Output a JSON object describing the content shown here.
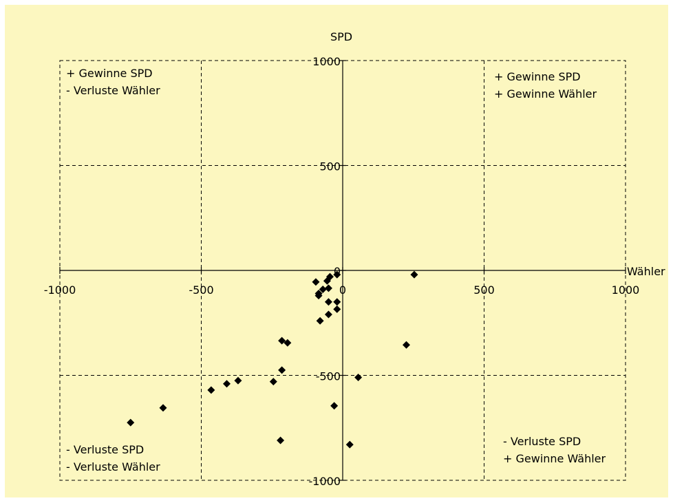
{
  "chart_data": {
    "type": "scatter",
    "title": "",
    "xlabel": "Wähler",
    "ylabel": "SPD",
    "xlim": [
      -1000,
      1000
    ],
    "ylim": [
      -1000,
      1000
    ],
    "xticks": [
      "-1000",
      "-500",
      "0",
      "500",
      "1000"
    ],
    "yticks": [
      "-1000",
      "-500",
      "0",
      "500",
      "1000"
    ],
    "grid": true,
    "legend": "none",
    "marker": "diamond",
    "colors": {
      "background": "#fcf7c0",
      "marker": "#000000",
      "grid": "#000000"
    },
    "quadrant_labels": {
      "top_left": [
        "+ Gewinne SPD",
        "- Verluste Wähler"
      ],
      "top_right": [
        "+ Gewinne SPD",
        "+ Gewinne Wähler"
      ],
      "bottom_left": [
        "- Verluste SPD",
        "- Verluste Wähler"
      ],
      "bottom_right": [
        "- Verluste SPD",
        "+ Gewinne Wähler"
      ]
    },
    "points": [
      {
        "x": 253,
        "y": -20
      },
      {
        "x": -20,
        "y": -20
      },
      {
        "x": -45,
        "y": -30
      },
      {
        "x": -55,
        "y": -50
      },
      {
        "x": -70,
        "y": -90
      },
      {
        "x": -85,
        "y": -110
      },
      {
        "x": -95,
        "y": -55
      },
      {
        "x": -50,
        "y": -85
      },
      {
        "x": -85,
        "y": -120
      },
      {
        "x": -50,
        "y": -150
      },
      {
        "x": -20,
        "y": -150
      },
      {
        "x": -20,
        "y": -185
      },
      {
        "x": -50,
        "y": -210
      },
      {
        "x": -80,
        "y": -240
      },
      {
        "x": -215,
        "y": -335
      },
      {
        "x": -195,
        "y": -345
      },
      {
        "x": 225,
        "y": -355
      },
      {
        "x": -215,
        "y": -475
      },
      {
        "x": 55,
        "y": -510
      },
      {
        "x": -370,
        "y": -525
      },
      {
        "x": -245,
        "y": -530
      },
      {
        "x": -410,
        "y": -540
      },
      {
        "x": -465,
        "y": -570
      },
      {
        "x": -635,
        "y": -655
      },
      {
        "x": -30,
        "y": -645
      },
      {
        "x": -750,
        "y": -725
      },
      {
        "x": -220,
        "y": -810
      },
      {
        "x": 25,
        "y": -830
      }
    ]
  }
}
